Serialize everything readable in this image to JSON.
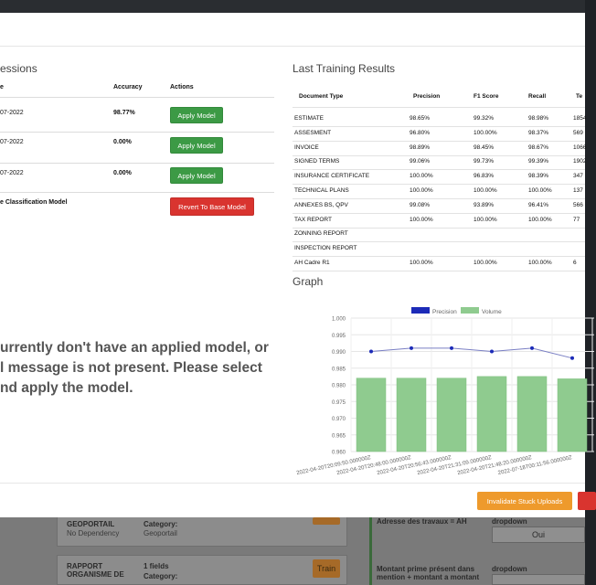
{
  "background": {
    "cards": [
      {
        "title": "GEOPORTAIL",
        "sub": "No Dependency",
        "cat_label": "Category:",
        "cat_value": "Geoportail"
      },
      {
        "title": "RAPPORT ORGANISME DE",
        "fields": "1 fields",
        "cat_label": "Category:",
        "train": "Train"
      }
    ],
    "right_items": [
      {
        "label": "Adresse des travaux = AH",
        "select": "dropdown",
        "value": "Oui"
      },
      {
        "label": "Montant prime présent dans mention + montant a montant",
        "select": "dropdown"
      }
    ]
  },
  "left": {
    "title": "essions",
    "headers": {
      "name": "e",
      "accuracy": "Accuracy",
      "actions": "Actions"
    },
    "rows": [
      {
        "date": "07-2022",
        "accuracy": "98.77%",
        "action": "Apply Model"
      },
      {
        "date": "07-2022",
        "accuracy": "0.00%",
        "action": "Apply Model"
      },
      {
        "date": "07-2022",
        "accuracy": "0.00%",
        "action": "Apply Model"
      }
    ],
    "base_row": {
      "name": "e Classification Model",
      "action": "Revert To Base Model"
    },
    "notice": [
      "urrently don't have an applied model, or",
      "l message is not present. Please select",
      "nd apply the model."
    ]
  },
  "right": {
    "title": "Last Training Results",
    "headers": {
      "doc": "Document Type",
      "precision": "Precision",
      "f1": "F1 Score",
      "recall": "Recall",
      "te": "Te"
    },
    "rows": [
      {
        "doc": "ESTIMATE",
        "precision": "98.65%",
        "f1": "99.32%",
        "recall": "98.98%",
        "te": "1854"
      },
      {
        "doc": "ASSESMENT",
        "precision": "96.80%",
        "f1": "100.00%",
        "recall": "98.37%",
        "te": "569"
      },
      {
        "doc": "INVOICE",
        "precision": "98.89%",
        "f1": "98.45%",
        "recall": "98.67%",
        "te": "1066"
      },
      {
        "doc": "SIGNED TERMS",
        "precision": "99.06%",
        "f1": "99.73%",
        "recall": "99.39%",
        "te": "1902"
      },
      {
        "doc": "INSURANCE CERTIFICATE",
        "precision": "100.00%",
        "f1": "96.83%",
        "recall": "98.39%",
        "te": "347"
      },
      {
        "doc": "TECHNICAL PLANS",
        "precision": "100.00%",
        "f1": "100.00%",
        "recall": "100.00%",
        "te": "137"
      },
      {
        "doc": "ANNEXES BS, QPV",
        "precision": "99.08%",
        "f1": "93.89%",
        "recall": "96.41%",
        "te": "566"
      },
      {
        "doc": "TAX REPORT",
        "precision": "100.00%",
        "f1": "100.00%",
        "recall": "100.00%",
        "te": "77"
      },
      {
        "doc": "ZONNING REPORT",
        "precision": "",
        "f1": "",
        "recall": "",
        "te": ""
      },
      {
        "doc": "INSPECTION REPORT",
        "precision": "",
        "f1": "",
        "recall": "",
        "te": ""
      },
      {
        "doc": "AH Cadre R1",
        "precision": "100.00%",
        "f1": "100.00%",
        "recall": "100.00%",
        "te": "6"
      }
    ],
    "graph_title": "Graph"
  },
  "footer": {
    "invalidate": "Invalidate Stuck Uploads"
  },
  "colors": {
    "green": "#3c9a45",
    "red": "#d9342f",
    "orange": "#ee9a2c",
    "bar": "#8fcb8f",
    "line": "#7a7fc4",
    "point": "#1c2bb8"
  },
  "chart_data": {
    "type": "bar",
    "legend": [
      "Precision",
      "Volume"
    ],
    "legend_position": "top",
    "categories": [
      "2022-04-20T20:09:50.000000Z",
      "2022-04-20T20:48:00.000000Z",
      "2022-04-20T20:56:43.000000Z",
      "2022-04-20T21:31:09.000000Z",
      "2022-04-20T21:48:20.000000Z",
      "2022-07-18T00:11:56.000000Z"
    ],
    "series": [
      {
        "name": "Precision",
        "type": "line",
        "values": [
          0.99,
          0.991,
          0.991,
          0.99,
          0.991,
          0.988
        ]
      },
      {
        "name": "Volume",
        "type": "bar",
        "values": [
          0.982,
          0.982,
          0.982,
          0.9825,
          0.9825,
          0.9818
        ]
      }
    ],
    "y_ticks": [
      "1.000",
      "0.995",
      "0.990",
      "0.985",
      "0.980",
      "0.975",
      "0.970",
      "0.965",
      "0.960"
    ],
    "ylim": [
      0.96,
      1.0
    ],
    "grid": true
  }
}
